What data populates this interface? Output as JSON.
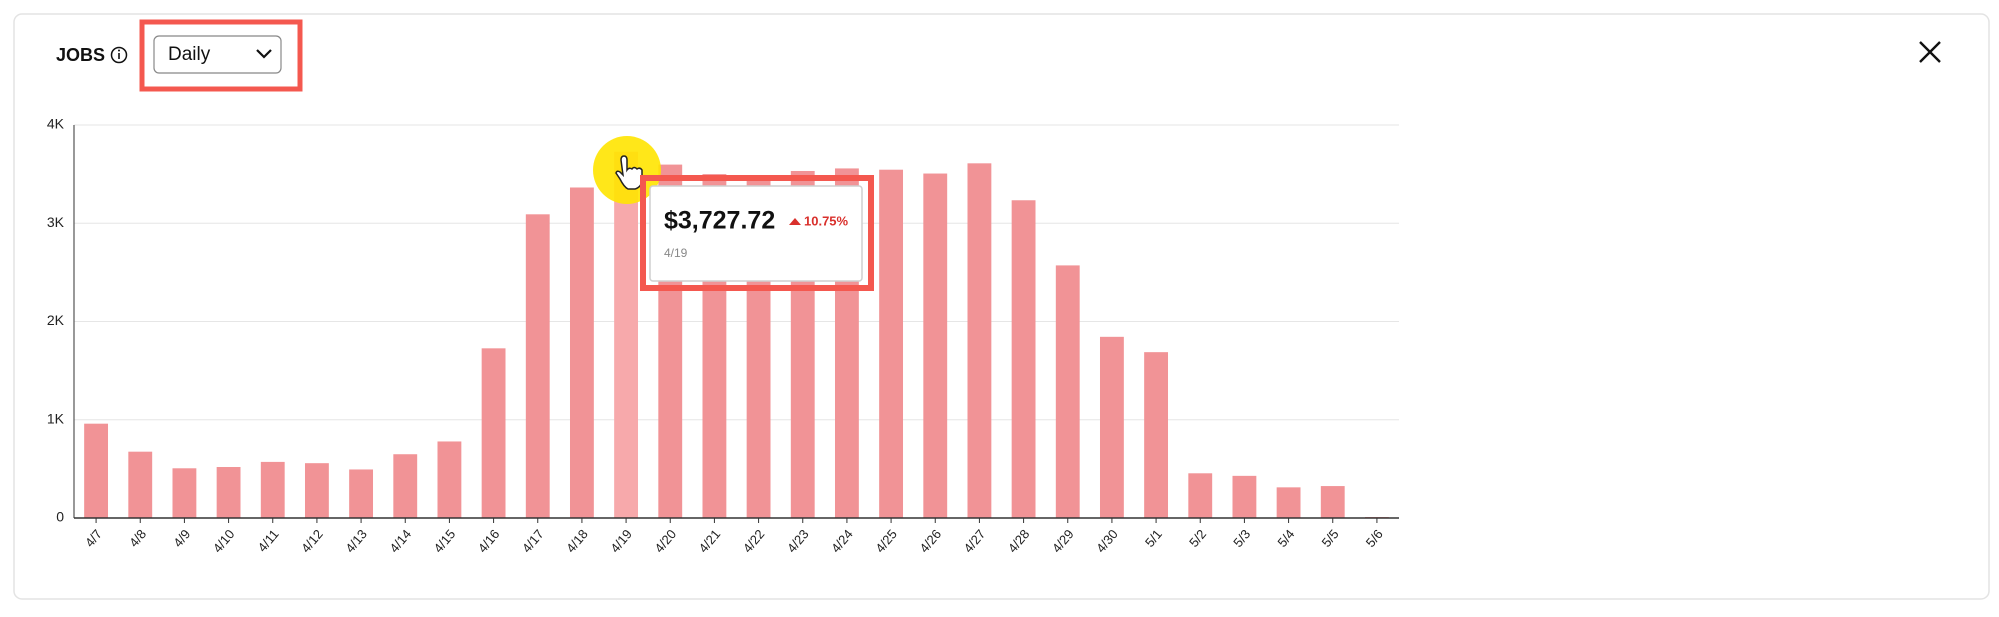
{
  "chart_data": {
    "type": "bar",
    "title": "JOBS",
    "period": "Daily",
    "categories": [
      "4/7",
      "4/8",
      "4/9",
      "4/10",
      "4/11",
      "4/12",
      "4/13",
      "4/14",
      "4/15",
      "4/16",
      "4/17",
      "4/18",
      "4/19",
      "4/20",
      "4/21",
      "4/22",
      "4/23",
      "4/24",
      "4/25",
      "4/26",
      "4/27",
      "4/28",
      "4/29",
      "4/30",
      "5/1",
      "5/2",
      "5/3",
      "5/4",
      "5/5",
      "5/6"
    ],
    "values": [
      960,
      675,
      506,
      519,
      571,
      558,
      494,
      649,
      779,
      1727,
      3091,
      3364,
      3727.72,
      3597,
      3500,
      3450,
      3532,
      3558,
      3545,
      3506,
      3610,
      3234,
      2571,
      1844,
      1688,
      455,
      429,
      312,
      325,
      10
    ],
    "color": "#f19396",
    "highlight_color": "#f7a9ab",
    "ylim": [
      0,
      4000
    ],
    "yticks": [
      0,
      {
        "value": 1000,
        "label": "1K"
      },
      {
        "value": 2000,
        "label": "2K"
      },
      {
        "value": 3000,
        "label": "3K"
      },
      {
        "value": 4000,
        "label": "4K"
      }
    ],
    "grid": true,
    "tooltip": {
      "value": 3727.72,
      "label": "$3,727.72",
      "change": "10.75%",
      "category": "4/19"
    }
  }
}
